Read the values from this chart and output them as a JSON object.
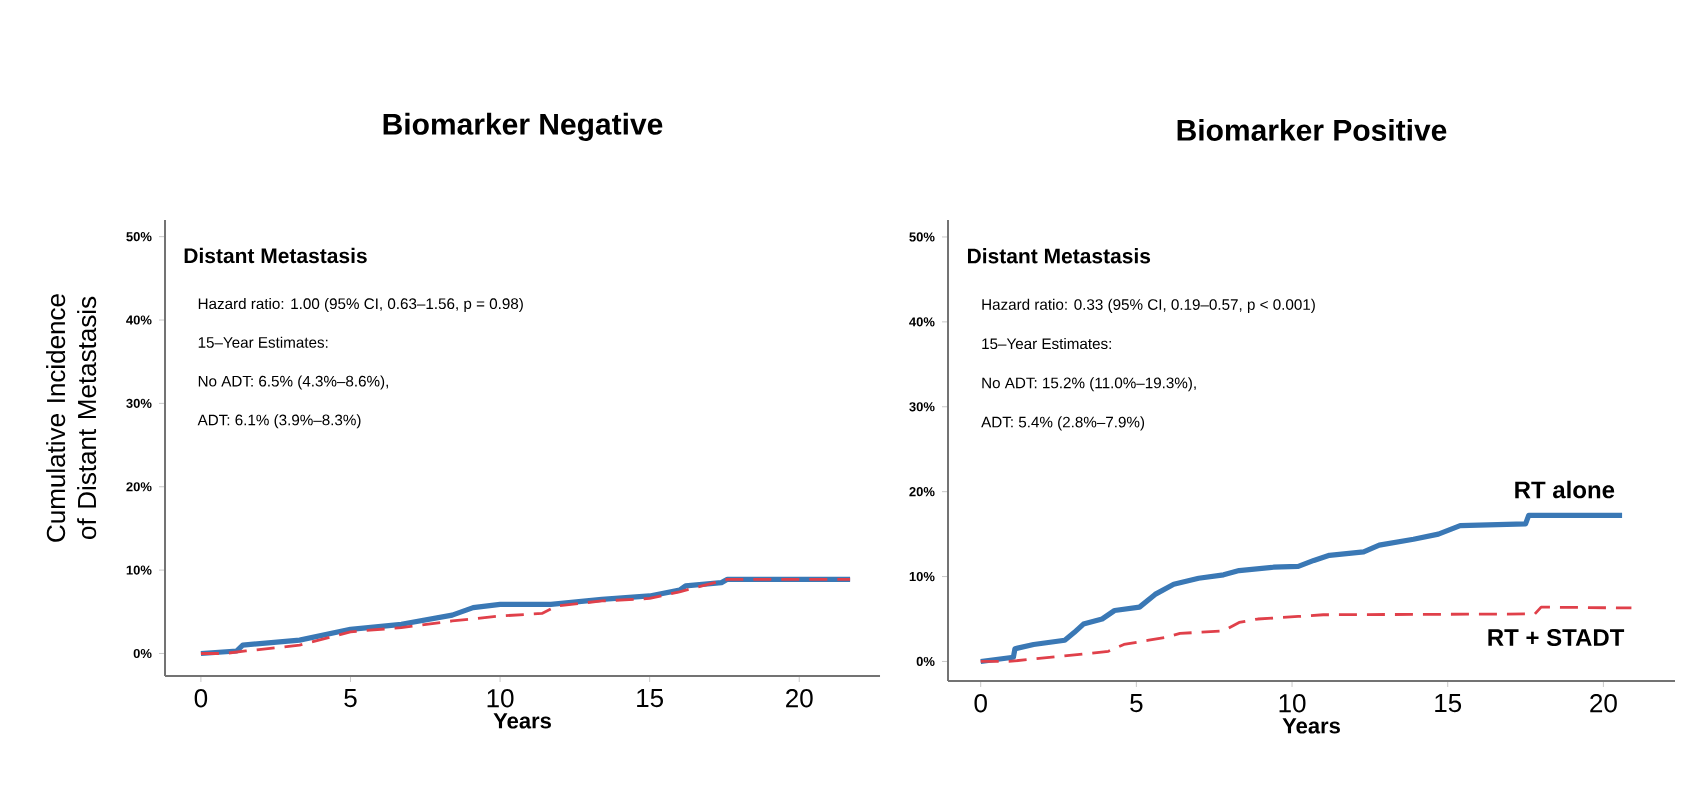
{
  "chart_data": [
    {
      "type": "line",
      "title": "Biomarker Negative",
      "xlabel": "Years",
      "ylabel": "Cumulative Incidence of Distant Metastasis",
      "xlim": [
        -1.2,
        22.7
      ],
      "ylim": [
        -2.7,
        52
      ],
      "xticks": [
        0,
        5,
        10,
        15,
        20
      ],
      "yticks": [
        {
          "value": 0,
          "label": "0%"
        },
        {
          "value": 10,
          "label": "10%"
        },
        {
          "value": 20,
          "label": "20%"
        },
        {
          "value": 30,
          "label": "30%"
        },
        {
          "value": 40,
          "label": "40%"
        },
        {
          "value": 50,
          "label": "50%"
        }
      ],
      "annotations": [
        "Distant Metastasis",
        "Hazard ratio: 1.00 (95% CI, 0.63–1.56, p = 0.98)",
        "15–Year Estimates:",
        "No ADT: 6.5% (4.3%–8.6%),",
        "ADT: 6.1% (3.9%–8.3%)"
      ],
      "series": [
        {
          "color": "#3a78b5",
          "line_style": "solid",
          "x": [
            0,
            1.2,
            1.4,
            3.3,
            5,
            6.7,
            8.4,
            9.1,
            10,
            11.7,
            13.4,
            15,
            16,
            16.2,
            17.4,
            17.6,
            21.7
          ],
          "values": [
            0,
            0.3,
            1.0,
            1.6,
            2.9,
            3.5,
            4.6,
            5.5,
            5.9,
            5.9,
            6.5,
            6.9,
            7.6,
            8.1,
            8.5,
            8.9,
            8.9
          ]
        },
        {
          "color": "#e0404a",
          "line_style": "dashed",
          "x": [
            0,
            0.8,
            1.5,
            3.3,
            5,
            6.7,
            8.4,
            10,
            11.4,
            11.9,
            13.4,
            15,
            16,
            17.6,
            21.7
          ],
          "values": [
            0,
            0,
            0.3,
            1.0,
            2.6,
            3.1,
            3.9,
            4.5,
            4.8,
            5.7,
            6.3,
            6.6,
            7.4,
            8.9,
            8.9
          ]
        }
      ]
    },
    {
      "type": "line",
      "title": "Biomarker Positive",
      "xlabel": "Years",
      "xlim": [
        -1.05,
        22.3
      ],
      "ylim": [
        -2.3,
        52
      ],
      "xticks": [
        0,
        5,
        10,
        15,
        20
      ],
      "yticks": [
        {
          "value": 0,
          "label": "0%"
        },
        {
          "value": 10,
          "label": "10%"
        },
        {
          "value": 20,
          "label": "20%"
        },
        {
          "value": 30,
          "label": "30%"
        },
        {
          "value": 40,
          "label": "40%"
        },
        {
          "value": 50,
          "label": "50%"
        }
      ],
      "annotations": [
        "Distant Metastasis",
        "Hazard ratio: 0.33 (95% CI, 0.19–0.57, p < 0.001)",
        "15–Year Estimates:",
        "No ADT: 15.2% (11.0%–19.3%),",
        "ADT: 5.4% (2.8%–7.9%)"
      ],
      "series": [
        {
          "name": "RT alone",
          "color": "#3a78b5",
          "line_style": "solid",
          "x": [
            0,
            1.05,
            1.1,
            1.7,
            2.7,
            3.0,
            3.3,
            3.9,
            4.3,
            5.1,
            5.6,
            6.2,
            7.0,
            7.8,
            8.3,
            9.4,
            10.2,
            10.7,
            11.2,
            12.3,
            12.8,
            13.9,
            14.7,
            15.4,
            17.5,
            17.6,
            20.6
          ],
          "values": [
            0,
            0.5,
            1.5,
            2.0,
            2.5,
            3.4,
            4.4,
            5.0,
            6.0,
            6.4,
            7.9,
            9.1,
            9.8,
            10.2,
            10.7,
            11.1,
            11.2,
            11.9,
            12.5,
            12.9,
            13.7,
            14.4,
            15.0,
            16.0,
            16.2,
            17.2,
            17.2
          ]
        },
        {
          "name": "RT + STADT",
          "color": "#e0404a",
          "line_style": "dashed",
          "x": [
            0,
            0.9,
            2.0,
            3.1,
            4.1,
            4.6,
            5.4,
            5.9,
            6.4,
            7.8,
            8.3,
            8.9,
            10.2,
            11.0,
            17.8,
            18.0,
            20.9
          ],
          "values": [
            0,
            0,
            0.4,
            0.8,
            1.2,
            2.0,
            2.5,
            2.8,
            3.3,
            3.6,
            4.6,
            5.0,
            5.3,
            5.5,
            5.6,
            6.4,
            6.3
          ]
        }
      ]
    }
  ]
}
